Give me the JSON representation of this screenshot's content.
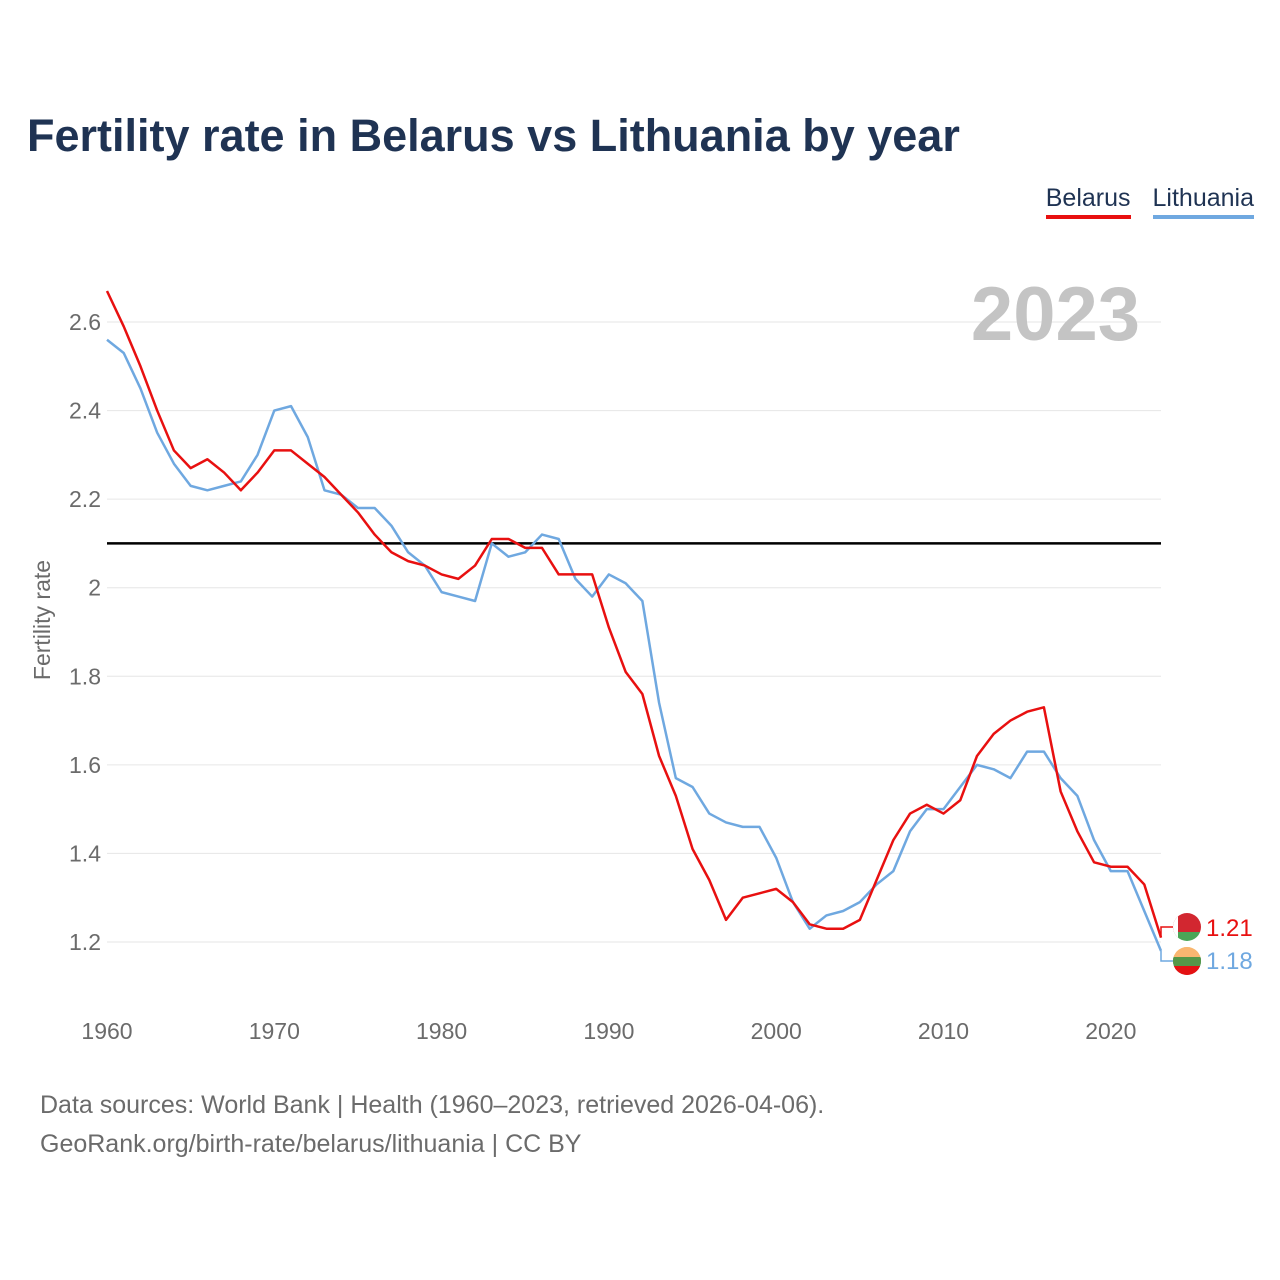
{
  "title": "Fertility rate in Belarus vs Lithuania by year",
  "legend": [
    {
      "name": "Belarus",
      "color": "#e81010"
    },
    {
      "name": "Lithuania",
      "color": "#6fa8e0"
    }
  ],
  "year_watermark": "2023",
  "footer": {
    "sources": "Data sources: World Bank | Health (1960–2023, retrieved 2026-04-06).",
    "link": "GeoRank.org/birth-rate/belarus/lithuania | CC BY"
  },
  "chart_data": {
    "type": "line",
    "title": "Fertility rate in Belarus vs Lithuania by year",
    "xlabel": "",
    "ylabel": "Fertility rate",
    "xlim": [
      1960,
      2023
    ],
    "ylim": [
      1.1,
      2.7
    ],
    "grid": true,
    "legend_position": "top-right",
    "x_ticks": [
      1960,
      1970,
      1980,
      1990,
      2000,
      2010,
      2020
    ],
    "y_ticks": [
      1.2,
      1.4,
      1.6,
      1.8,
      2,
      2.2,
      2.4,
      2.6
    ],
    "y_tick_labels": [
      "1.2",
      "1.4",
      "1.6",
      "1.8",
      "2",
      "2.2",
      "2.4",
      "2.6"
    ],
    "reference_line": {
      "y": 2.1,
      "color": "#000000"
    },
    "x": [
      1960,
      1961,
      1962,
      1963,
      1964,
      1965,
      1966,
      1967,
      1968,
      1969,
      1970,
      1971,
      1972,
      1973,
      1974,
      1975,
      1976,
      1977,
      1978,
      1979,
      1980,
      1981,
      1982,
      1983,
      1984,
      1985,
      1986,
      1987,
      1988,
      1989,
      1990,
      1991,
      1992,
      1993,
      1994,
      1995,
      1996,
      1997,
      1998,
      1999,
      2000,
      2001,
      2002,
      2003,
      2004,
      2005,
      2006,
      2007,
      2008,
      2009,
      2010,
      2011,
      2012,
      2013,
      2014,
      2015,
      2016,
      2017,
      2018,
      2019,
      2020,
      2021,
      2022,
      2023
    ],
    "series": [
      {
        "name": "Belarus",
        "color": "#e81010",
        "end_label": "1.21",
        "values": [
          2.67,
          2.59,
          2.5,
          2.4,
          2.31,
          2.27,
          2.29,
          2.26,
          2.22,
          2.26,
          2.31,
          2.31,
          2.28,
          2.25,
          2.21,
          2.17,
          2.12,
          2.08,
          2.06,
          2.05,
          2.03,
          2.02,
          2.05,
          2.11,
          2.11,
          2.09,
          2.09,
          2.03,
          2.03,
          2.03,
          1.91,
          1.81,
          1.76,
          1.62,
          1.53,
          1.41,
          1.34,
          1.25,
          1.3,
          1.31,
          1.32,
          1.29,
          1.24,
          1.23,
          1.23,
          1.25,
          1.34,
          1.43,
          1.49,
          1.51,
          1.49,
          1.52,
          1.62,
          1.67,
          1.7,
          1.72,
          1.73,
          1.54,
          1.45,
          1.38,
          1.37,
          1.37,
          1.33,
          1.21
        ]
      },
      {
        "name": "Lithuania",
        "color": "#6fa8e0",
        "end_label": "1.18",
        "values": [
          2.56,
          2.53,
          2.45,
          2.35,
          2.28,
          2.23,
          2.22,
          2.23,
          2.24,
          2.3,
          2.4,
          2.41,
          2.34,
          2.22,
          2.21,
          2.18,
          2.18,
          2.14,
          2.08,
          2.05,
          1.99,
          1.98,
          1.97,
          2.1,
          2.07,
          2.08,
          2.12,
          2.11,
          2.02,
          1.98,
          2.03,
          2.01,
          1.97,
          1.74,
          1.57,
          1.55,
          1.49,
          1.47,
          1.46,
          1.46,
          1.39,
          1.29,
          1.23,
          1.26,
          1.27,
          1.29,
          1.33,
          1.36,
          1.45,
          1.5,
          1.5,
          1.55,
          1.6,
          1.59,
          1.57,
          1.63,
          1.63,
          1.57,
          1.53,
          1.43,
          1.36,
          1.36,
          1.27,
          1.18
        ]
      }
    ]
  }
}
